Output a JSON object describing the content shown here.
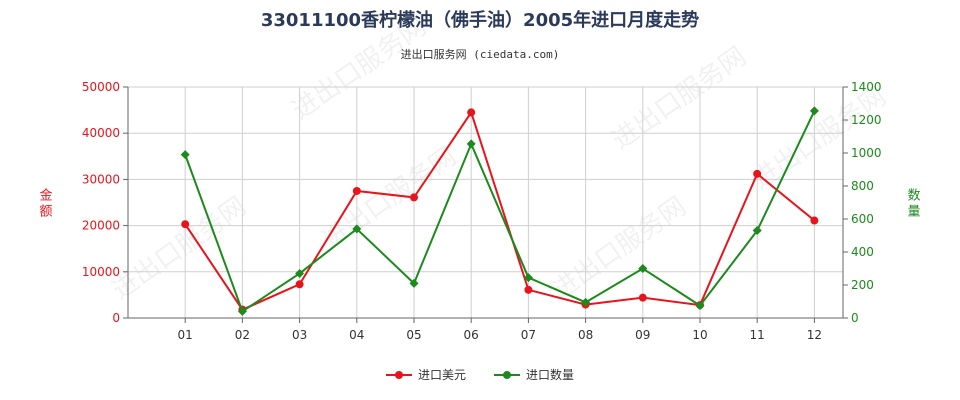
{
  "title": "33011100香柠檬油（佛手油）2005年进口月度走势",
  "subtitle": "进出口服务网 (ciedata.com)",
  "watermark": "进出口服务网",
  "colors": {
    "usd": "#e8141b",
    "qty": "#1c8a1c",
    "grid": "#cfcfcf",
    "axis": "#666666"
  },
  "chart_data": {
    "type": "line",
    "categories": [
      "01",
      "02",
      "03",
      "04",
      "05",
      "06",
      "07",
      "08",
      "09",
      "10",
      "11",
      "12"
    ],
    "y_left": {
      "label": "金额",
      "ylim": [
        0,
        50000
      ],
      "ticks": [
        0,
        10000,
        20000,
        30000,
        40000,
        50000
      ]
    },
    "y_right": {
      "label": "数量",
      "ylim": [
        0,
        1400
      ],
      "ticks": [
        0,
        200,
        400,
        600,
        800,
        1000,
        1200,
        1400
      ]
    },
    "grid": true,
    "legend_position": "bottom-center",
    "series": [
      {
        "name": "进口美元",
        "axis": "left",
        "color": "#e8141b",
        "marker": "circle",
        "values": [
          20300,
          1800,
          7300,
          27500,
          26100,
          44500,
          6100,
          2900,
          4400,
          2800,
          31200,
          21100
        ]
      },
      {
        "name": "进口数量",
        "axis": "right",
        "color": "#1c8a1c",
        "marker": "diamond",
        "values": [
          990,
          40,
          270,
          540,
          210,
          1055,
          245,
          95,
          300,
          75,
          530,
          1255
        ]
      }
    ]
  }
}
